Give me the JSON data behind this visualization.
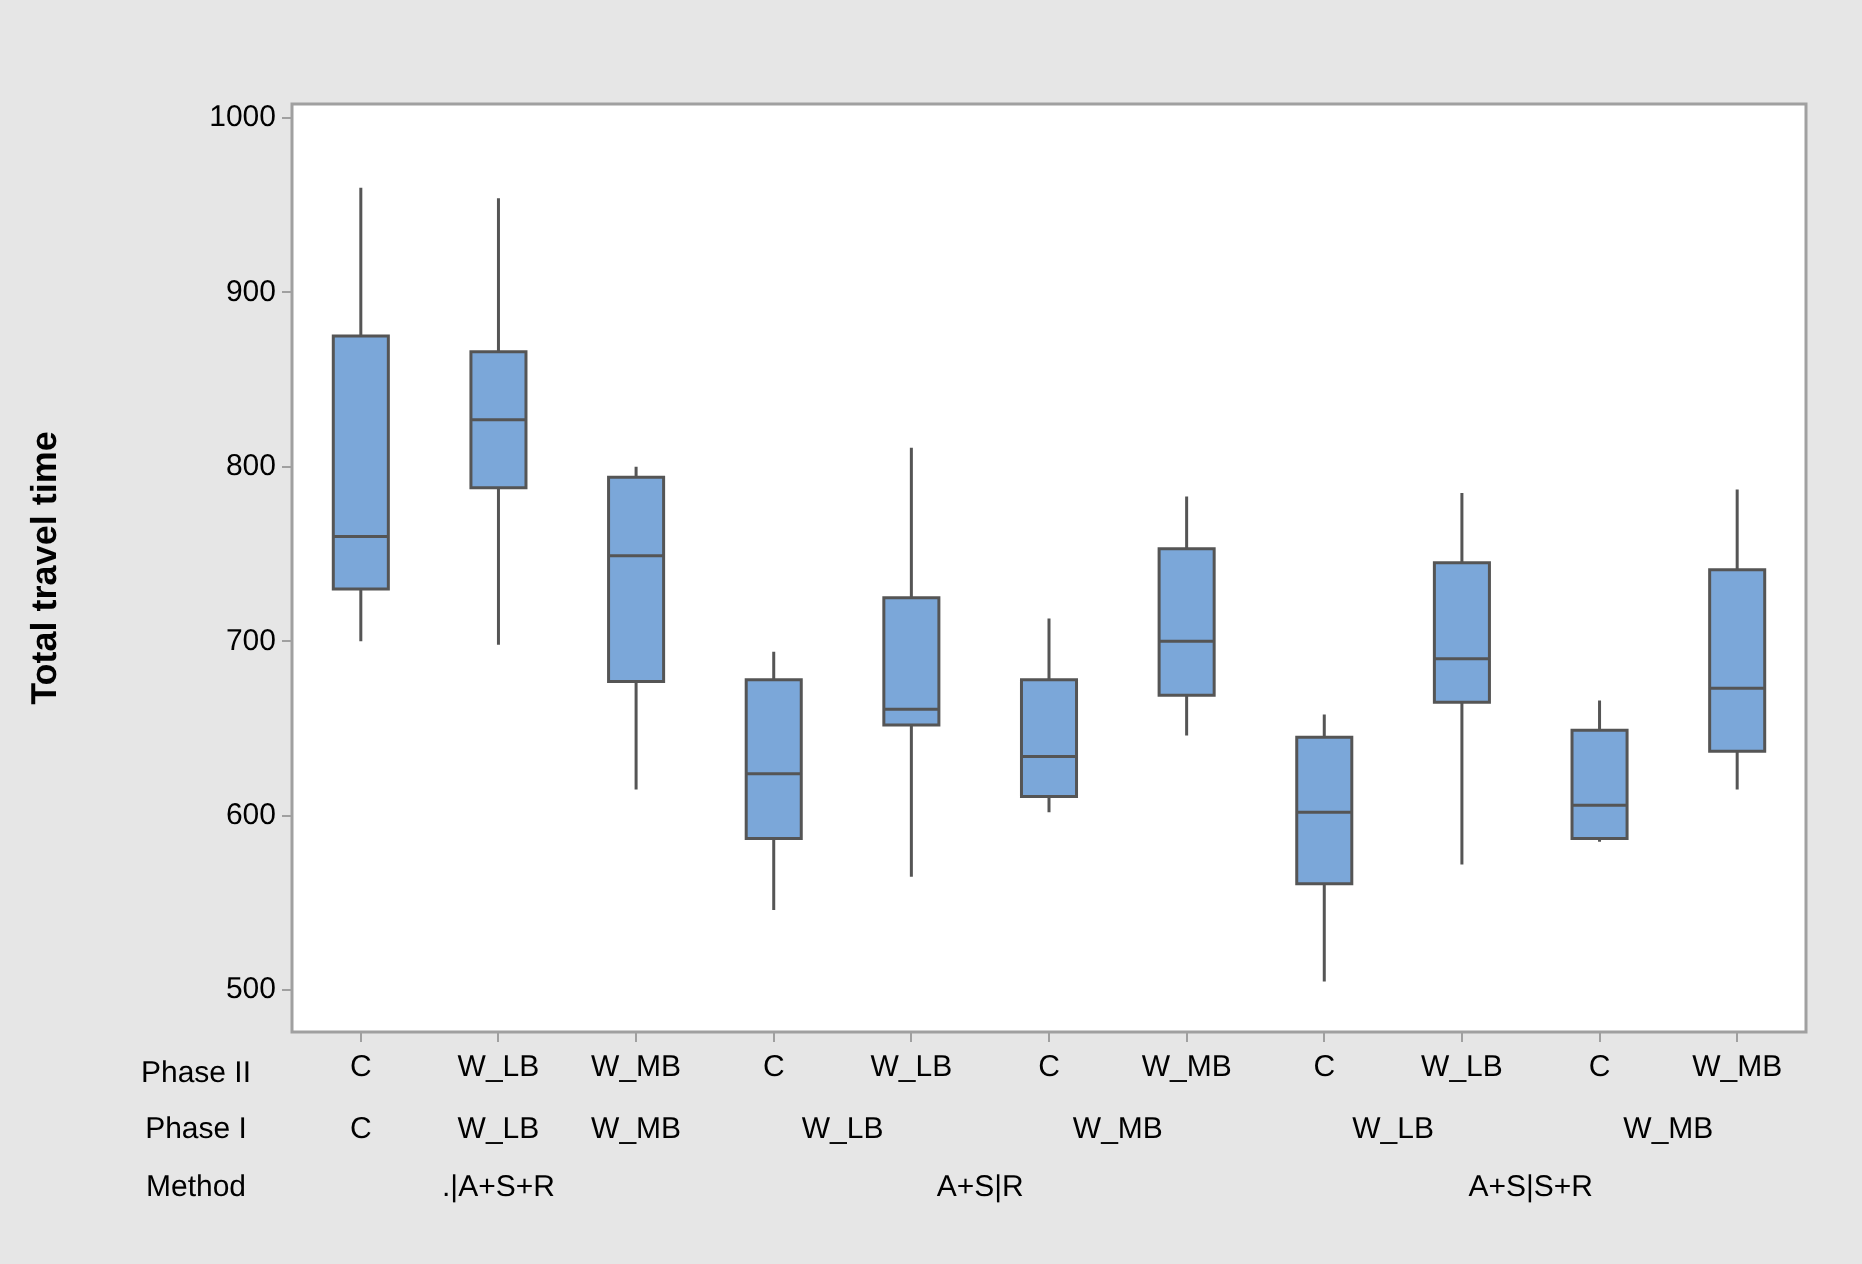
{
  "chart_data": {
    "type": "box",
    "ylabel": "Total travel time",
    "categories": [
      "C",
      "W_LB",
      "W_MB",
      "C",
      "W_LB",
      "C",
      "W_MB",
      "C",
      "W_LB",
      "C",
      "W_MB"
    ],
    "ylim": [
      476,
      1008
    ],
    "yticks": [
      500,
      600,
      700,
      800,
      900,
      1000
    ],
    "series": [
      {
        "color": "#7ba7d9",
        "boxes": [
          {
            "low": 700,
            "q1": 730,
            "median": 760,
            "q3": 875,
            "high": 960
          },
          {
            "low": 698,
            "q1": 788,
            "median": 827,
            "q3": 866,
            "high": 954
          },
          {
            "low": 615,
            "q1": 677,
            "median": 749,
            "q3": 794,
            "high": 800
          },
          {
            "low": 546,
            "q1": 587,
            "median": 624,
            "q3": 678,
            "high": 694
          },
          {
            "low": 565,
            "q1": 652,
            "median": 661,
            "q3": 725,
            "high": 811
          },
          {
            "low": 602,
            "q1": 611,
            "median": 634,
            "q3": 678,
            "high": 713
          },
          {
            "low": 646,
            "q1": 669,
            "median": 700,
            "q3": 753,
            "high": 783
          },
          {
            "low": 505,
            "q1": 561,
            "median": 602,
            "q3": 645,
            "high": 658
          },
          {
            "low": 572,
            "q1": 665,
            "median": 690,
            "q3": 745,
            "high": 785
          },
          {
            "low": 585,
            "q1": 587,
            "median": 606,
            "q3": 649,
            "high": 666
          },
          {
            "low": 615,
            "q1": 637,
            "median": 673,
            "q3": 741,
            "high": 787
          }
        ]
      }
    ],
    "annotations": [
      "Phase II",
      "Phase I",
      "Method",
      "C",
      "W_LB",
      "W_MB",
      "W_LB",
      "W_MB",
      "W_LB",
      "W_MB",
      ".|A+S+R",
      "A+S|R",
      "A+S|S+R"
    ]
  }
}
